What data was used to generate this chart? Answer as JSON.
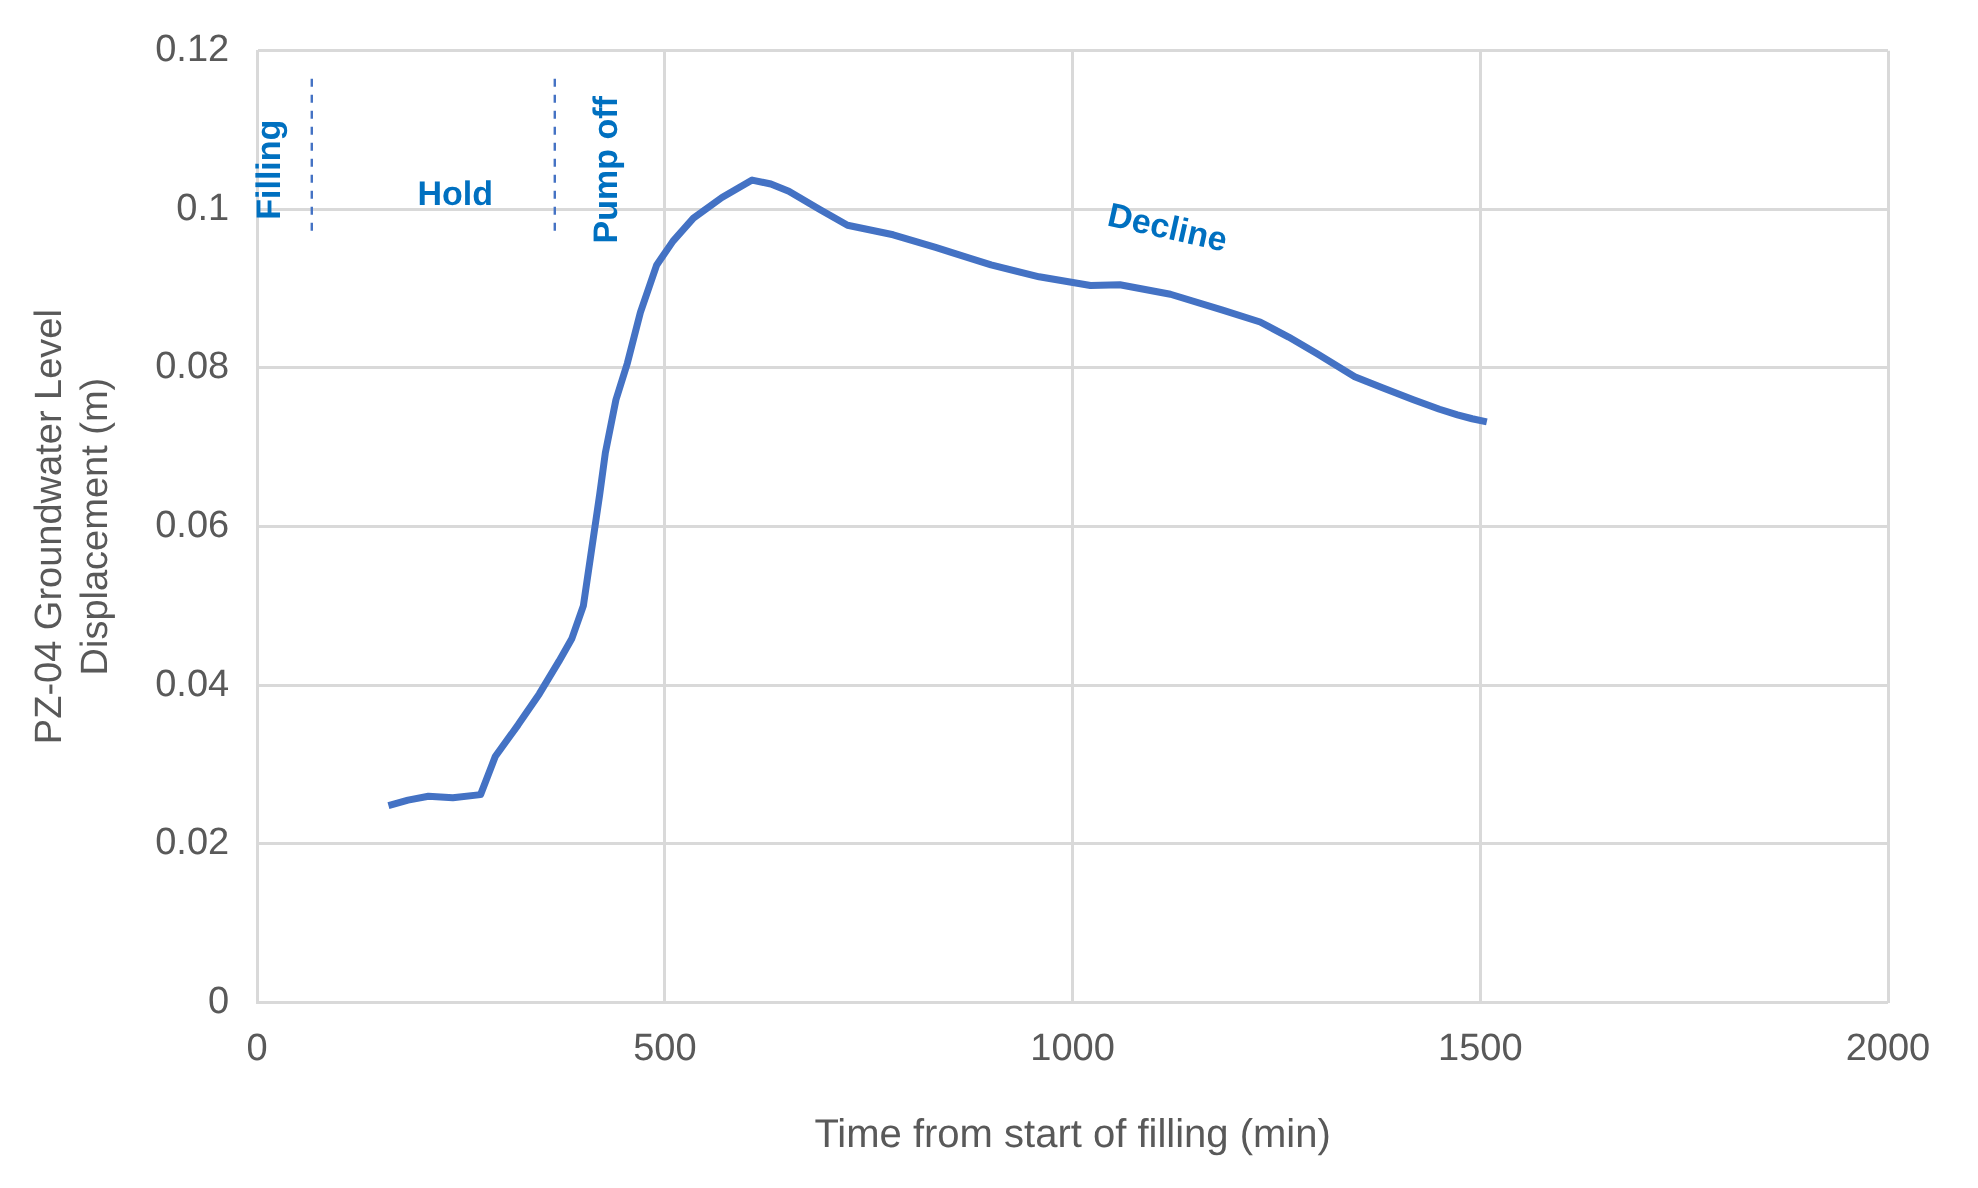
{
  "chart_data": {
    "type": "line",
    "xlabel": "Time from start of filling (min)",
    "ylabel": "PZ-04 Groundwater Level Displacement (m)",
    "x": [
      161,
      185,
      210,
      240,
      274,
      292,
      320,
      346,
      370,
      386,
      400,
      409,
      420,
      427,
      440,
      454,
      470,
      490,
      510,
      535,
      570,
      607,
      630,
      652,
      690,
      724,
      780,
      832,
      900,
      959,
      1022,
      1058,
      1120,
      1184,
      1230,
      1265,
      1300,
      1346,
      1380,
      1418,
      1450,
      1472,
      1490,
      1508
    ],
    "series": [
      {
        "color": "#4472c4",
        "values": [
          0.0248,
          0.0255,
          0.026,
          0.0258,
          0.0262,
          0.031,
          0.035,
          0.0389,
          0.043,
          0.0459,
          0.05,
          0.0563,
          0.064,
          0.0693,
          0.076,
          0.0806,
          0.087,
          0.093,
          0.096,
          0.0989,
          0.1015,
          0.1037,
          0.1032,
          0.1023,
          0.1,
          0.098,
          0.0968,
          0.0952,
          0.093,
          0.0915,
          0.0904,
          0.0905,
          0.0893,
          0.0873,
          0.0858,
          0.0839,
          0.0818,
          0.0789,
          0.0775,
          0.076,
          0.0748,
          0.0741,
          0.0736,
          0.0732
        ]
      }
    ],
    "xlim": [
      0,
      2000
    ],
    "xticks": [
      0,
      500,
      1000,
      1500,
      2000
    ],
    "ylim": [
      0,
      0.12
    ],
    "yticks": [
      0,
      0.02,
      0.04,
      0.06,
      0.08,
      0.1,
      0.12
    ],
    "grid": true,
    "legend": false,
    "marker": "none",
    "line_style": "solid",
    "ref_lines": [
      {
        "axis": "x",
        "value": 67,
        "color": "#4472c4",
        "line_style": "dashed"
      },
      {
        "axis": "x",
        "value": 365,
        "color": "#4472c4",
        "line_style": "dashed"
      }
    ],
    "annotations": [
      "Filling",
      "Hold",
      "Pump off",
      "Decline"
    ]
  }
}
